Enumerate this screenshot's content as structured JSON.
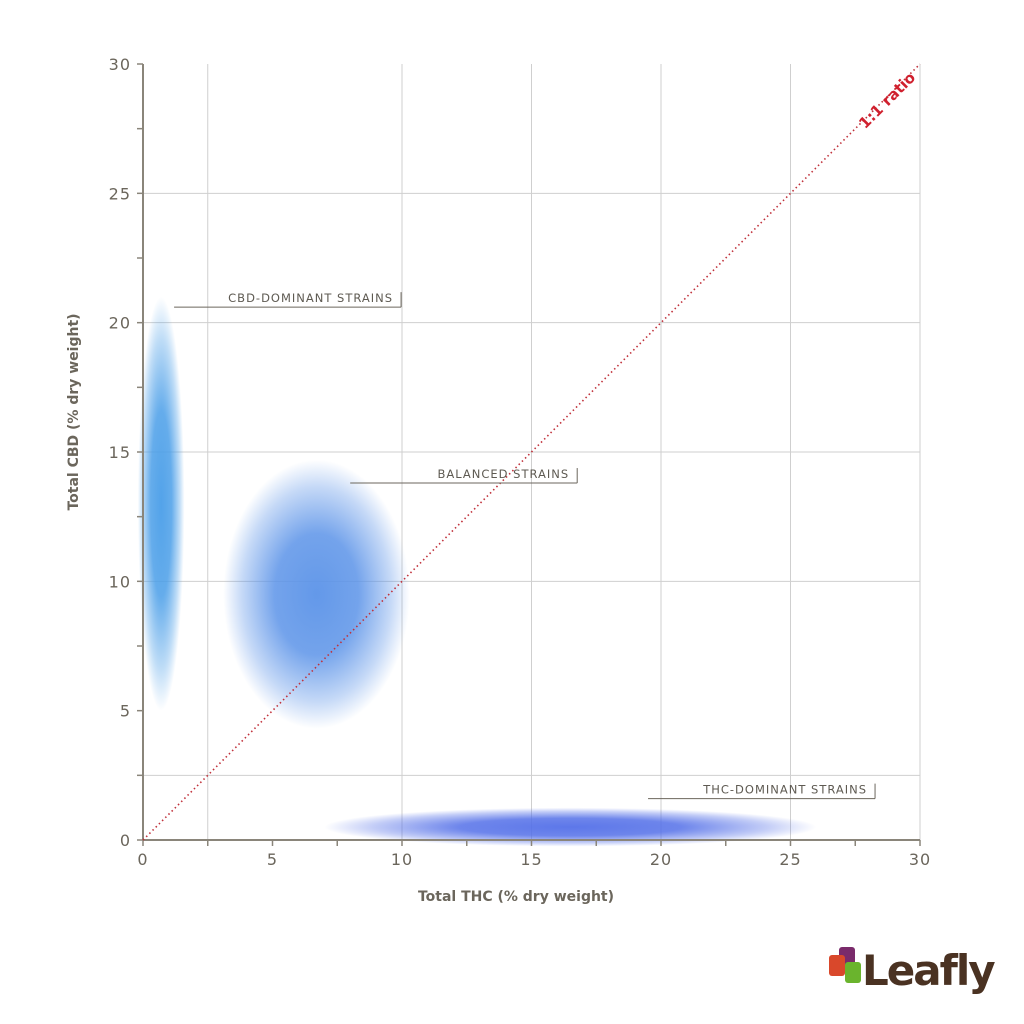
{
  "chart_data": {
    "type": "area",
    "title": "",
    "xlabel": "Total THC (% dry weight)",
    "ylabel": "Total CBD (% dry weight)",
    "xlim": [
      0,
      30
    ],
    "ylim": [
      0,
      30
    ],
    "x_ticks": [
      0,
      5,
      10,
      15,
      20,
      25,
      30
    ],
    "y_ticks": [
      0,
      5,
      10,
      15,
      20,
      25,
      30
    ],
    "minor_tick_step": 2.5,
    "grid": true,
    "reference_line": {
      "label": "1:1 ratio",
      "slope": 1,
      "color": "#d0202e",
      "style": "dotted"
    },
    "regions": [
      {
        "name": "CBD-DOMINANT STRAINS",
        "center": [
          0.7,
          13
        ],
        "spread": [
          0.9,
          8
        ],
        "color": "#4a9ee8",
        "label_anchor": [
          1.2,
          20.6
        ]
      },
      {
        "name": "BALANCED STRAINS",
        "center": [
          6.7,
          9.5
        ],
        "spread": [
          3.6,
          5.2
        ],
        "color": "#5b93e8",
        "label_anchor": [
          8,
          13.8
        ]
      },
      {
        "name": "THC-DOMINANT STRAINS",
        "center": [
          16.5,
          0.5
        ],
        "spread": [
          9.5,
          0.75
        ],
        "color": "#5470e8",
        "label_anchor": [
          19.5,
          1.6
        ]
      }
    ]
  },
  "brand": {
    "name": "Leafly",
    "colors": [
      "#7a2b6b",
      "#d9482b",
      "#6ab42d"
    ]
  }
}
